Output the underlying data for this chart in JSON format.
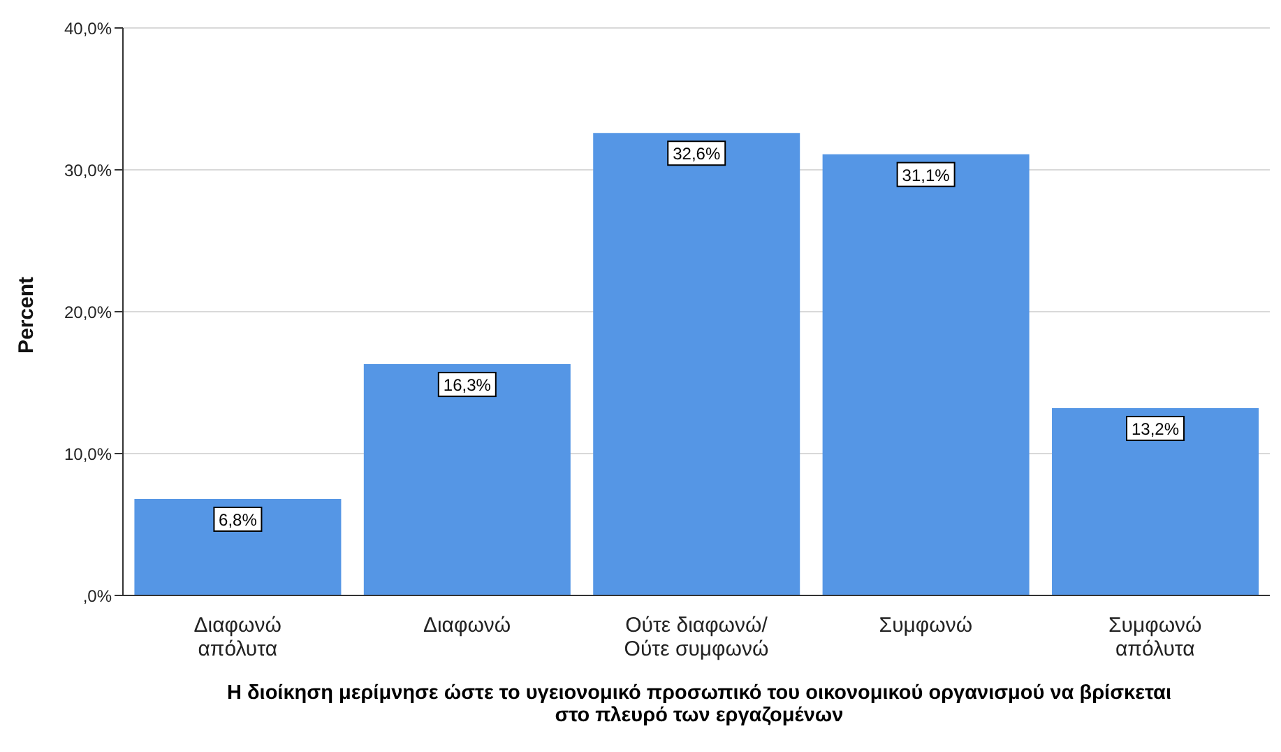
{
  "chart_data": {
    "type": "bar",
    "xlabel": "Η διοίκηση μερίμνησε ώστε το υγειονομικό προσωπικό του οικονομικού οργανισμού να βρίσκεται\nστο πλευρό των εργαζομένων",
    "ylabel": "Percent",
    "categories": [
      "Διαφωνώ\nαπόλυτα",
      "Διαφωνώ",
      "Ούτε διαφωνώ/\nΟύτε συμφωνώ",
      "Συμφωνώ",
      "Συμφωνώ\nαπόλυτα"
    ],
    "values": [
      6.8,
      16.3,
      32.6,
      31.1,
      13.2
    ],
    "value_labels": [
      "6,8%",
      "16,3%",
      "32,6%",
      "31,1%",
      "13,2%"
    ],
    "color": "#5596e5",
    "ylim": [
      0,
      40
    ],
    "yticks": [
      {
        "value": 0,
        "label": ",0%"
      },
      {
        "value": 10,
        "label": "10,0%"
      },
      {
        "value": 20,
        "label": "20,0%"
      },
      {
        "value": 30,
        "label": "30,0%"
      },
      {
        "value": 40,
        "label": "40,0%"
      }
    ],
    "grid": "y"
  }
}
